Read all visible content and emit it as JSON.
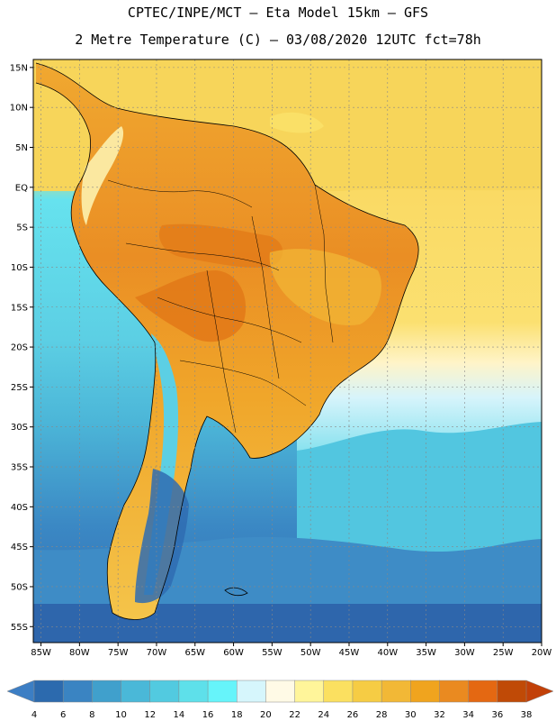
{
  "header": {
    "line1": "CPTEC/INPE/MCT –  Eta Model 15km – GFS",
    "line2": "2 Metre Temperature (C) – 03/08/2020 12UTC fct=78h"
  },
  "map": {
    "lat_labels": [
      "15N",
      "10N",
      "5N",
      "EQ",
      "5S",
      "10S",
      "15S",
      "20S",
      "25S",
      "30S",
      "35S",
      "40S",
      "45S",
      "50S",
      "55S"
    ],
    "lon_labels": [
      "85W",
      "80W",
      "75W",
      "70W",
      "65W",
      "60W",
      "55W",
      "50W",
      "45W",
      "40W",
      "35W",
      "30W",
      "25W",
      "20W"
    ],
    "lat_range": [
      -57,
      16
    ],
    "lon_range": [
      -86,
      -20
    ]
  },
  "legend": {
    "labels": [
      "4",
      "6",
      "8",
      "10",
      "12",
      "14",
      "16",
      "18",
      "20",
      "22",
      "24",
      "26",
      "28",
      "30",
      "32",
      "34",
      "36",
      "38"
    ],
    "colors": [
      "#2c6aae",
      "#3a84c2",
      "#40a0cc",
      "#4ab8d8",
      "#52cae0",
      "#5ee0ea",
      "#66f4fa",
      "#d6f6fc",
      "#fffae6",
      "#fff59a",
      "#fbe060",
      "#f6cc44",
      "#f2b836",
      "#f0a41e",
      "#ea8a20",
      "#e46812",
      "#c04a06"
    ],
    "under_color": "#3c7ec4",
    "over_color": "#c24008"
  }
}
